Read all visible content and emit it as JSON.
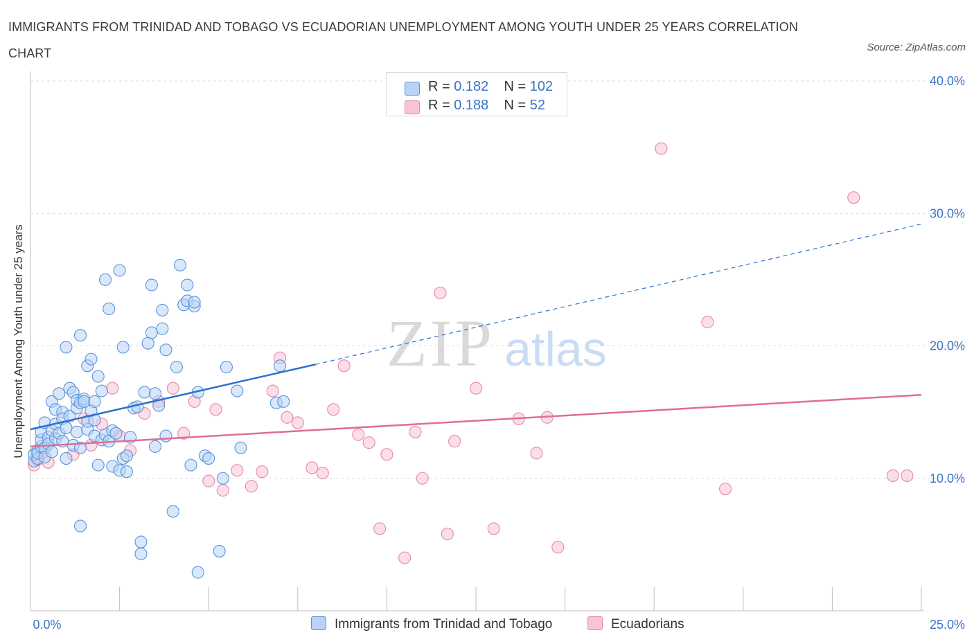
{
  "title": "IMMIGRANTS FROM TRINIDAD AND TOBAGO VS ECUADORIAN UNEMPLOYMENT AMONG YOUTH UNDER 25 YEARS CORRELATION CHART",
  "source": "Source: ZipAtlas.com",
  "watermark": {
    "zip": "ZIP",
    "atlas": "atlas"
  },
  "legend": {
    "series1": {
      "r_label": "R = ",
      "r_value": "0.182",
      "n_label": "N = ",
      "n_value": "102"
    },
    "series2": {
      "r_label": "R = ",
      "r_value": "0.188",
      "n_label": "N = ",
      "n_value": "52"
    }
  },
  "colors": {
    "blue_fill": "#b8d3f5",
    "blue_stroke": "#5b93d9",
    "blue_line": "#2a72d0",
    "pink_fill": "#f8c3d4",
    "pink_stroke": "#e48aa7",
    "pink_line": "#e06d97",
    "tick_text": "#3a74c9",
    "grid": "#dcdcdc"
  },
  "chart_data": {
    "type": "scatter",
    "xlabel": "",
    "ylabel": "Unemployment Among Youth under 25 years",
    "xlim": [
      0,
      25
    ],
    "ylim": [
      0,
      40
    ],
    "x_tick_labels": [
      "0.0%",
      "25.0%"
    ],
    "y_ticks": [
      10,
      20,
      30,
      40
    ],
    "y_tick_labels": [
      "10.0%",
      "20.0%",
      "30.0%",
      "40.0%"
    ],
    "grid": true,
    "legend_position": "top-center",
    "series": [
      {
        "name": "Immigrants from Trinidad and Tobago",
        "color": "#b8d3f5",
        "trend": {
          "x": [
            0,
            8
          ],
          "y": [
            13.7,
            18.6
          ],
          "dashed_to": [
            25,
            29.2
          ]
        },
        "points": [
          [
            0.1,
            11.3
          ],
          [
            0.1,
            11.8
          ],
          [
            0.2,
            12.1
          ],
          [
            0.2,
            11.5
          ],
          [
            0.2,
            11.9
          ],
          [
            0.3,
            12.4
          ],
          [
            0.3,
            12.9
          ],
          [
            0.3,
            13.5
          ],
          [
            0.4,
            12.3
          ],
          [
            0.4,
            11.6
          ],
          [
            0.4,
            14.2
          ],
          [
            0.5,
            13.1
          ],
          [
            0.5,
            12.6
          ],
          [
            0.6,
            13.6
          ],
          [
            0.6,
            12.0
          ],
          [
            0.6,
            15.8
          ],
          [
            0.7,
            14.1
          ],
          [
            0.7,
            13.0
          ],
          [
            0.7,
            15.2
          ],
          [
            0.8,
            16.4
          ],
          [
            0.8,
            13.4
          ],
          [
            0.9,
            12.8
          ],
          [
            0.9,
            15.0
          ],
          [
            0.9,
            14.5
          ],
          [
            1.0,
            11.5
          ],
          [
            1.0,
            13.8
          ],
          [
            1.0,
            19.9
          ],
          [
            1.1,
            14.7
          ],
          [
            1.1,
            16.8
          ],
          [
            1.2,
            16.5
          ],
          [
            1.2,
            12.5
          ],
          [
            1.3,
            13.5
          ],
          [
            1.3,
            15.3
          ],
          [
            1.3,
            15.9
          ],
          [
            1.4,
            15.7
          ],
          [
            1.4,
            20.8
          ],
          [
            1.4,
            12.3
          ],
          [
            1.5,
            16.0
          ],
          [
            1.5,
            15.8
          ],
          [
            1.6,
            13.7
          ],
          [
            1.6,
            14.3
          ],
          [
            1.6,
            18.5
          ],
          [
            1.7,
            19.0
          ],
          [
            1.7,
            15.1
          ],
          [
            1.8,
            14.4
          ],
          [
            1.8,
            15.8
          ],
          [
            1.8,
            13.2
          ],
          [
            1.9,
            17.7
          ],
          [
            1.9,
            11.0
          ],
          [
            2.0,
            16.6
          ],
          [
            2.0,
            12.9
          ],
          [
            2.1,
            25.0
          ],
          [
            2.1,
            13.3
          ],
          [
            2.2,
            22.8
          ],
          [
            2.2,
            12.8
          ],
          [
            2.3,
            10.9
          ],
          [
            2.3,
            13.6
          ],
          [
            2.4,
            13.4
          ],
          [
            2.5,
            10.6
          ],
          [
            2.5,
            25.7
          ],
          [
            2.6,
            11.5
          ],
          [
            2.6,
            19.9
          ],
          [
            2.7,
            10.5
          ],
          [
            2.7,
            11.7
          ],
          [
            2.8,
            13.1
          ],
          [
            2.9,
            15.3
          ],
          [
            3.0,
            15.4
          ],
          [
            3.1,
            5.2
          ],
          [
            3.1,
            4.3
          ],
          [
            3.2,
            16.5
          ],
          [
            3.3,
            20.2
          ],
          [
            3.4,
            21.0
          ],
          [
            3.4,
            24.6
          ],
          [
            3.5,
            12.4
          ],
          [
            3.5,
            16.4
          ],
          [
            3.6,
            15.5
          ],
          [
            3.7,
            22.7
          ],
          [
            3.7,
            21.3
          ],
          [
            3.8,
            19.7
          ],
          [
            3.8,
            13.2
          ],
          [
            4.0,
            7.5
          ],
          [
            4.1,
            18.4
          ],
          [
            4.2,
            26.1
          ],
          [
            4.3,
            23.1
          ],
          [
            4.4,
            24.6
          ],
          [
            4.4,
            23.4
          ],
          [
            4.5,
            11.0
          ],
          [
            4.6,
            23.0
          ],
          [
            4.6,
            23.3
          ],
          [
            4.7,
            16.5
          ],
          [
            4.7,
            2.9
          ],
          [
            4.9,
            11.7
          ],
          [
            5.0,
            11.5
          ],
          [
            5.3,
            4.5
          ],
          [
            5.4,
            10.0
          ],
          [
            5.5,
            18.4
          ],
          [
            5.8,
            16.6
          ],
          [
            5.9,
            12.3
          ],
          [
            6.9,
            15.7
          ],
          [
            7.0,
            18.5
          ],
          [
            7.1,
            15.8
          ],
          [
            1.4,
            6.4
          ]
        ]
      },
      {
        "name": "Ecuadorians",
        "color": "#f8c3d4",
        "trend": {
          "x": [
            0,
            25
          ],
          "y": [
            12.4,
            16.3
          ]
        },
        "points": [
          [
            0.1,
            11.0
          ],
          [
            0.2,
            11.4
          ],
          [
            0.3,
            11.9
          ],
          [
            0.5,
            11.2
          ],
          [
            1.2,
            11.8
          ],
          [
            1.5,
            14.5
          ],
          [
            1.7,
            12.5
          ],
          [
            2.0,
            14.1
          ],
          [
            2.3,
            16.8
          ],
          [
            2.5,
            13.2
          ],
          [
            2.8,
            12.1
          ],
          [
            3.2,
            14.9
          ],
          [
            3.6,
            15.8
          ],
          [
            4.0,
            16.8
          ],
          [
            4.3,
            13.4
          ],
          [
            4.6,
            15.8
          ],
          [
            5.0,
            9.8
          ],
          [
            5.2,
            15.2
          ],
          [
            5.4,
            9.1
          ],
          [
            5.8,
            10.6
          ],
          [
            6.2,
            9.4
          ],
          [
            6.5,
            10.5
          ],
          [
            6.8,
            16.6
          ],
          [
            7.0,
            19.1
          ],
          [
            7.2,
            14.6
          ],
          [
            7.5,
            14.2
          ],
          [
            7.9,
            10.8
          ],
          [
            8.2,
            10.4
          ],
          [
            8.5,
            15.2
          ],
          [
            8.8,
            18.5
          ],
          [
            9.2,
            13.3
          ],
          [
            9.5,
            12.7
          ],
          [
            9.8,
            6.2
          ],
          [
            10.0,
            11.8
          ],
          [
            10.5,
            4.0
          ],
          [
            10.8,
            13.5
          ],
          [
            11.0,
            10.0
          ],
          [
            11.5,
            24.0
          ],
          [
            11.7,
            5.8
          ],
          [
            11.9,
            12.8
          ],
          [
            12.5,
            16.8
          ],
          [
            13.0,
            6.2
          ],
          [
            13.7,
            14.5
          ],
          [
            14.2,
            11.9
          ],
          [
            14.5,
            14.6
          ],
          [
            14.8,
            4.8
          ],
          [
            17.7,
            34.9
          ],
          [
            19.0,
            21.8
          ],
          [
            19.5,
            9.2
          ],
          [
            23.1,
            31.2
          ],
          [
            24.2,
            10.2
          ],
          [
            24.6,
            10.2
          ]
        ]
      }
    ]
  }
}
